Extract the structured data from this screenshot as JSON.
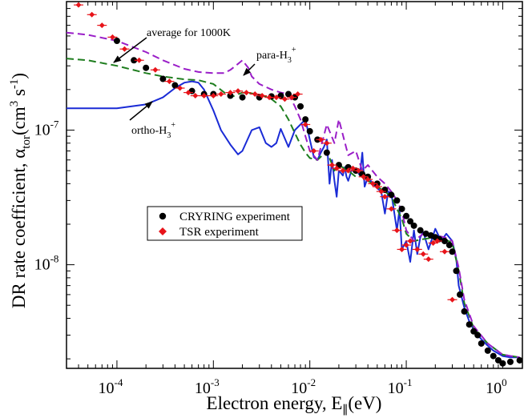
{
  "chart_data": {
    "type": "line",
    "title": "",
    "xlabel": {
      "main": "Electron energy, E",
      "sub": "∥",
      "tail": "(eV)"
    },
    "ylabel": {
      "main": "DR rate coefficient, α",
      "sub": "tor",
      "unit_open": "(cm",
      "unit_sup": "3",
      "unit_mid": " s",
      "unit_sup2": "-1",
      "unit_close": ")"
    },
    "xscale": "log",
    "yscale": "log",
    "xlim": [
      3e-05,
      1.6
    ],
    "ylim": [
      1.7e-09,
      9e-07
    ],
    "x_ticks": [
      {
        "value": 0.0001,
        "base": "10",
        "exp": "-4"
      },
      {
        "value": 0.001,
        "base": "10",
        "exp": "-3"
      },
      {
        "value": 0.01,
        "base": "10",
        "exp": "-2"
      },
      {
        "value": 0.1,
        "base": "10",
        "exp": "-1"
      },
      {
        "value": 1,
        "base": "10",
        "exp": "0"
      }
    ],
    "y_ticks": [
      {
        "value": 1e-08,
        "base": "10",
        "exp": "-8"
      },
      {
        "value": 1e-07,
        "base": "10",
        "exp": "-7"
      }
    ],
    "grid": false,
    "legend": {
      "placement": "center-left",
      "entries": [
        {
          "label": "CRYRING experiment",
          "marker": "circle",
          "color": "#000000"
        },
        {
          "label": "TSR experiment",
          "marker": "diamond",
          "color": "#e8141a"
        }
      ]
    },
    "annotations": [
      {
        "id": "avg",
        "text": "average for 1000K",
        "pointer_at": [
          9e-05,
          2.9e-07
        ]
      },
      {
        "id": "para",
        "main": "para-H",
        "sub": "3",
        "sup": "+",
        "pointer_at": [
          0.002,
          2.75e-07
        ]
      },
      {
        "id": "ortho",
        "main": "ortho-H",
        "sub": "3",
        "sup": "+",
        "pointer_at": [
          0.00022,
          1.95e-07
        ]
      }
    ],
    "series": [
      {
        "name": "ortho-H3+ theory",
        "style": "solid",
        "color": "#1a2bd6",
        "x": [
          3e-05,
          0.0001,
          0.0002,
          0.0003,
          0.0004,
          0.0005,
          0.0006,
          0.0007,
          0.0008,
          0.001,
          0.0012,
          0.0015,
          0.0018,
          0.002,
          0.0025,
          0.003,
          0.0035,
          0.004,
          0.0045,
          0.005,
          0.006,
          0.007,
          0.008,
          0.009,
          0.01,
          0.011,
          0.012,
          0.013,
          0.014,
          0.015,
          0.016,
          0.017,
          0.018,
          0.019,
          0.02,
          0.021,
          0.022,
          0.023,
          0.024,
          0.025,
          0.027,
          0.03,
          0.033,
          0.035,
          0.037,
          0.04,
          0.045,
          0.05,
          0.055,
          0.06,
          0.065,
          0.07,
          0.08,
          0.085,
          0.09,
          0.1,
          0.11,
          0.12,
          0.13,
          0.14,
          0.15,
          0.17,
          0.2,
          0.23,
          0.26,
          0.3,
          0.33,
          0.35,
          0.4,
          0.45,
          0.5,
          0.6,
          0.7,
          0.8,
          1.0,
          1.2,
          1.5
        ],
        "y": [
          1.45e-07,
          1.45e-07,
          1.55e-07,
          1.75e-07,
          2.05e-07,
          2.25e-07,
          2.3e-07,
          2.25e-07,
          2e-07,
          1.4e-07,
          1e-07,
          7.8e-08,
          6.6e-08,
          7e-08,
          1e-07,
          1.05e-07,
          8e-08,
          7.5e-08,
          8e-08,
          1.02e-07,
          7.5e-08,
          1e-07,
          1.1e-07,
          1.2e-07,
          8.5e-08,
          6.3e-08,
          6e-08,
          6.8e-08,
          7.5e-08,
          8.5e-08,
          4e-08,
          6e-08,
          4.2e-08,
          3.2e-08,
          5e-08,
          4.8e-08,
          4.6e-08,
          5.3e-08,
          4.5e-08,
          4.2e-08,
          5e-08,
          5.2e-08,
          4.6e-08,
          6.8e-08,
          3.8e-08,
          4.5e-08,
          4e-08,
          3.7e-08,
          3.5e-08,
          2.4e-08,
          3.5e-08,
          3.4e-08,
          1.8e-08,
          2.6e-08,
          1.3e-08,
          1.5e-08,
          1.05e-08,
          1.8e-08,
          1.2e-08,
          1.6e-08,
          1.75e-08,
          1.3e-08,
          1.85e-08,
          1.5e-08,
          1.7e-08,
          1.5e-08,
          1.1e-08,
          7e-09,
          4.8e-09,
          3.8e-09,
          3.3e-09,
          2.8e-09,
          2.5e-09,
          2.3e-09,
          2.1e-09,
          2.05e-09,
          2.05e-09
        ]
      },
      {
        "name": "average for 1000K",
        "style": "dashed",
        "color": "#1e7d1e",
        "x": [
          3e-05,
          5e-05,
          0.0001,
          0.0002,
          0.0003,
          0.0005,
          0.0007,
          0.001,
          0.0013,
          0.0015,
          0.002,
          0.003,
          0.004,
          0.005,
          0.006,
          0.007,
          0.008,
          0.009,
          0.01,
          0.012,
          0.015,
          0.018,
          0.02,
          0.025,
          0.03,
          0.035,
          0.04,
          0.05,
          0.06,
          0.07,
          0.08,
          0.09,
          0.1,
          0.12,
          0.15,
          0.2,
          0.25,
          0.3,
          0.35,
          0.4,
          0.5,
          0.7,
          1.0,
          1.5
        ],
        "y": [
          3.4e-07,
          3.3e-07,
          3e-07,
          2.65e-07,
          2.5e-07,
          2.38e-07,
          2.35e-07,
          2.2e-07,
          1.9e-07,
          1.75e-07,
          1.9e-07,
          1.85e-07,
          1.7e-07,
          1.5e-07,
          1.2e-07,
          9.5e-08,
          7.8e-08,
          6.8e-08,
          6.2e-08,
          6e-08,
          7e-08,
          5e-08,
          5.5e-08,
          5e-08,
          4.5e-08,
          4.8e-08,
          4.2e-08,
          3.8e-08,
          3.5e-08,
          3.2e-08,
          2.6e-08,
          2.2e-08,
          1.7e-08,
          1.5e-08,
          1.55e-08,
          1.6e-08,
          1.55e-08,
          1.45e-08,
          9e-09,
          5.2e-09,
          3.4e-09,
          2.6e-09,
          2.15e-09,
          2.05e-09
        ]
      },
      {
        "name": "para-H3+ theory",
        "style": "dashed",
        "color": "#9a1ec8",
        "x": [
          3e-05,
          5e-05,
          0.0001,
          0.0002,
          0.0003,
          0.0005,
          0.0007,
          0.001,
          0.0013,
          0.0015,
          0.0018,
          0.002,
          0.0023,
          0.0025,
          0.003,
          0.004,
          0.005,
          0.006,
          0.007,
          0.008,
          0.009,
          0.01,
          0.012,
          0.015,
          0.018,
          0.02,
          0.025,
          0.03,
          0.035,
          0.04,
          0.05,
          0.06,
          0.07,
          0.08,
          0.09,
          0.1,
          0.12,
          0.15,
          0.2,
          0.25,
          0.3,
          0.35,
          0.4,
          0.5,
          0.7,
          1.0,
          1.5
        ],
        "y": [
          5.3e-07,
          5.1e-07,
          4.6e-07,
          3.8e-07,
          3.3e-07,
          2.85e-07,
          2.7e-07,
          2.65e-07,
          2.65e-07,
          2.8e-07,
          3.1e-07,
          3.3e-07,
          2.9e-07,
          2.5e-07,
          2.2e-07,
          2e-07,
          1.9e-07,
          1.85e-07,
          1.5e-07,
          1.2e-07,
          9e-08,
          7e-08,
          6e-08,
          1.1e-07,
          8e-08,
          1.2e-07,
          6.5e-08,
          7e-08,
          5e-08,
          5.5e-08,
          4.5e-08,
          4e-08,
          3.5e-08,
          3e-08,
          2.5e-08,
          1.8e-08,
          1.5e-08,
          1.7e-08,
          1.65e-08,
          1.6e-08,
          1.5e-08,
          9.5e-09,
          5.5e-09,
          3.5e-09,
          2.6e-09,
          2.15e-09,
          2.05e-09
        ]
      },
      {
        "name": "CRYRING experiment",
        "style": "markers",
        "marker": "circle",
        "color": "#000000",
        "x": [
          0.0001,
          0.00015,
          0.0002,
          0.0003,
          0.0004,
          0.0006,
          0.0008,
          0.001,
          0.0015,
          0.002,
          0.003,
          0.004,
          0.005,
          0.006,
          0.007,
          0.008,
          0.009,
          0.01,
          0.012,
          0.015,
          0.02,
          0.025,
          0.03,
          0.035,
          0.04,
          0.05,
          0.06,
          0.07,
          0.08,
          0.09,
          0.1,
          0.11,
          0.12,
          0.14,
          0.16,
          0.18,
          0.2,
          0.22,
          0.25,
          0.28,
          0.3,
          0.33,
          0.36,
          0.4,
          0.45,
          0.5,
          0.55,
          0.6,
          0.7,
          0.8,
          0.9,
          1.0,
          1.2,
          1.5
        ],
        "y": [
          4.6e-07,
          3.3e-07,
          2.9e-07,
          2.4e-07,
          2.15e-07,
          1.95e-07,
          1.85e-07,
          1.85e-07,
          1.8e-07,
          1.75e-07,
          1.75e-07,
          1.78e-07,
          1.8e-07,
          1.85e-07,
          1.75e-07,
          1.5e-07,
          1.2e-07,
          9.8e-08,
          8.5e-08,
          6.8e-08,
          5.5e-08,
          5.3e-08,
          5e-08,
          4.7e-08,
          4.5e-08,
          4e-08,
          3.6e-08,
          3.3e-08,
          3e-08,
          2.6e-08,
          2.3e-08,
          2.1e-08,
          1.95e-08,
          1.8e-08,
          1.7e-08,
          1.65e-08,
          1.6e-08,
          1.55e-08,
          1.5e-08,
          1.4e-08,
          1.25e-08,
          9e-09,
          6e-09,
          4.5e-09,
          3.6e-09,
          3.2e-09,
          3e-09,
          2.6e-09,
          2.3e-09,
          2.1e-09,
          1.95e-09,
          1.85e-09,
          1.9e-09,
          1.95e-09
        ]
      },
      {
        "name": "TSR experiment",
        "style": "markers",
        "marker": "diamond",
        "color": "#e8141a",
        "x": [
          4e-05,
          5.5e-05,
          7e-05,
          9e-05,
          0.00012,
          0.00017,
          0.00025,
          0.00035,
          0.00045,
          0.00055,
          0.00065,
          0.0008,
          0.001,
          0.0012,
          0.0015,
          0.0018,
          0.0022,
          0.0027,
          0.0032,
          0.0038,
          0.0045,
          0.0055,
          0.0065,
          0.0075,
          0.009,
          0.011,
          0.013,
          0.015,
          0.017,
          0.019,
          0.022,
          0.025,
          0.028,
          0.032,
          0.036,
          0.04,
          0.045,
          0.05,
          0.055,
          0.06,
          0.07,
          0.08,
          0.09,
          0.1,
          0.11,
          0.13,
          0.15,
          0.17,
          0.19,
          0.21,
          0.25,
          0.3
        ],
        "y": [
          8.5e-07,
          7.2e-07,
          6e-07,
          4.9e-07,
          4e-07,
          3.3e-07,
          2.8e-07,
          2.3e-07,
          2.05e-07,
          1.9e-07,
          1.8e-07,
          1.8e-07,
          1.8e-07,
          1.85e-07,
          1.9e-07,
          1.95e-07,
          1.9e-07,
          1.85e-07,
          1.8e-07,
          1.75e-07,
          1.75e-07,
          1.7e-07,
          1.75e-07,
          1.85e-07,
          1.1e-07,
          7e-08,
          8.5e-08,
          8e-08,
          5.5e-08,
          5.2e-08,
          5e-08,
          5e-08,
          5.2e-08,
          5e-08,
          4.5e-08,
          4.3e-08,
          4e-08,
          3.8e-08,
          3.5e-08,
          3.2e-08,
          2.6e-08,
          1.8e-08,
          1.3e-08,
          1.4e-08,
          1.5e-08,
          1.3e-08,
          1.2e-08,
          1.1e-08,
          1.45e-08,
          1.5e-08,
          1.25e-08,
          5.5e-09
        ]
      }
    ]
  }
}
